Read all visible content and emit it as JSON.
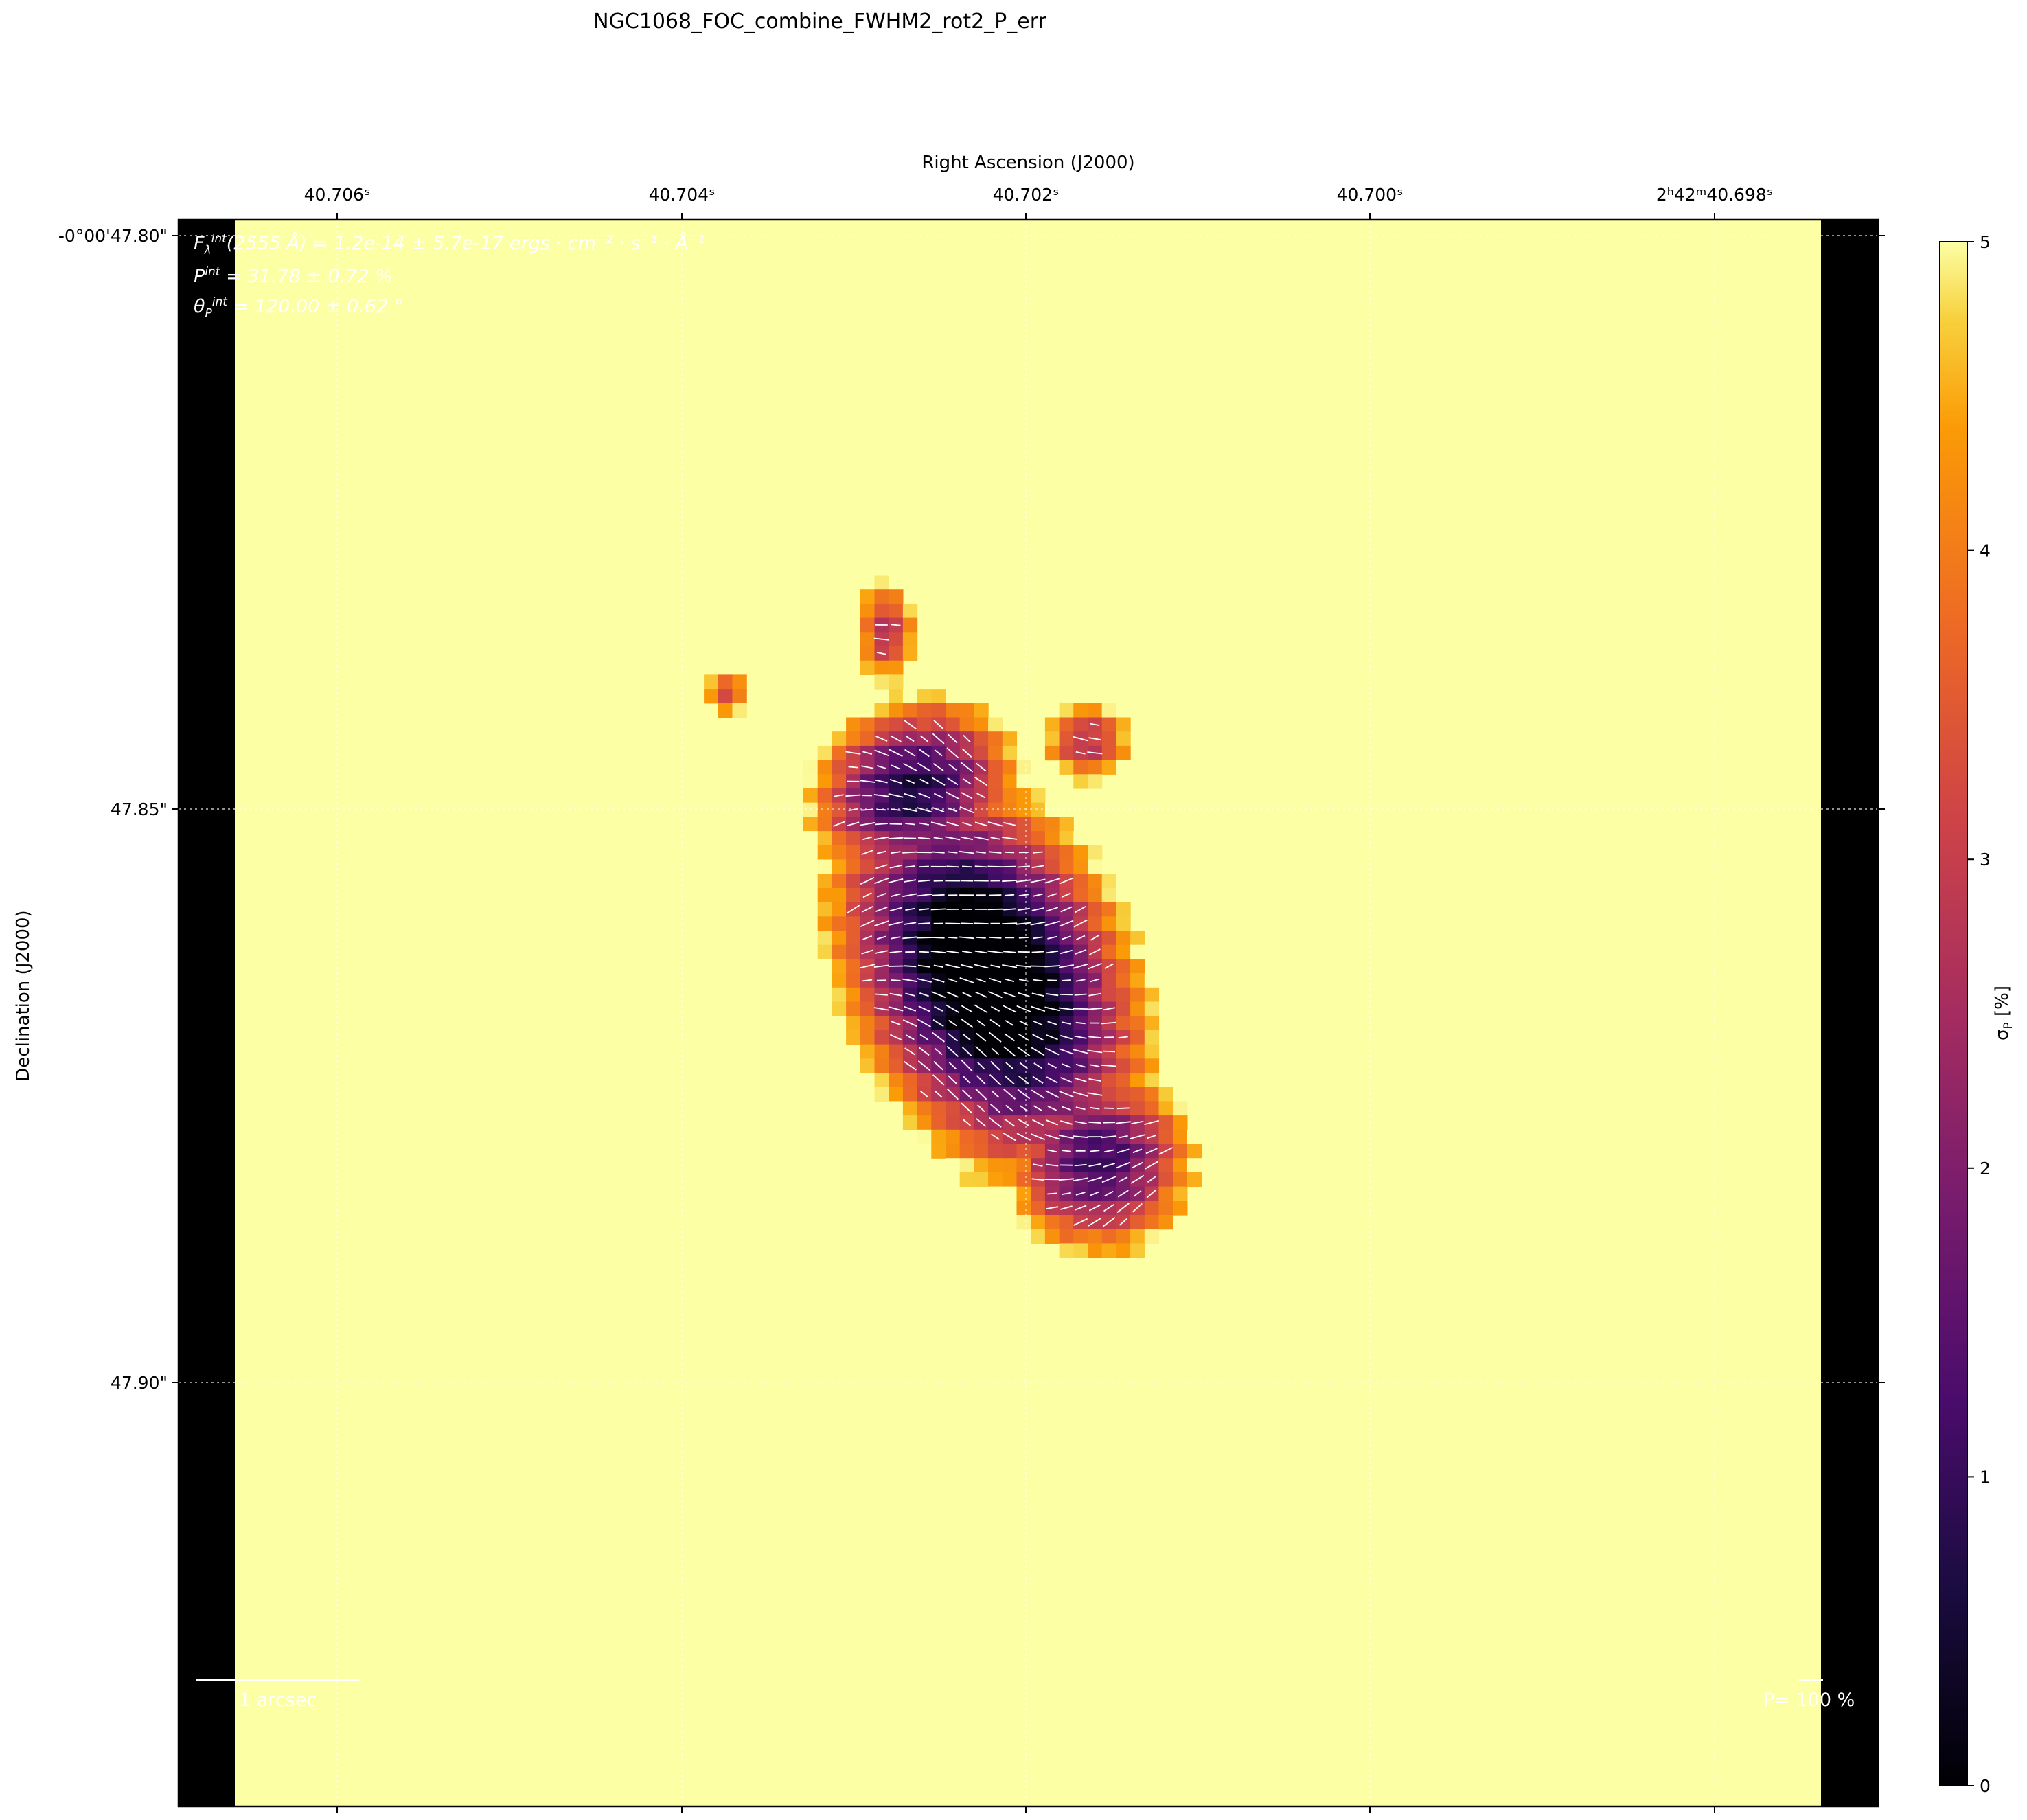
{
  "chart_data": {
    "type": "heatmap",
    "title": "NGC1068_FOC_combine_FWHM2_rot2_P_err",
    "xlabel": "Right Ascension (J2000)",
    "ylabel": "Declination (J2000)",
    "x_ticks": [
      "40.706ˢ",
      "40.704ˢ",
      "40.702ˢ",
      "40.700ˢ",
      "2ʰ42ᵐ40.698ˢ"
    ],
    "y_ticks": [
      "-0°00'47.80\"",
      "47.85\"",
      "47.90\""
    ],
    "colorbar": {
      "label": "σ_P [%]",
      "min": 0,
      "max": 5,
      "ticks": [
        "0",
        "1",
        "2",
        "3",
        "4",
        "5"
      ],
      "colormap": "inferno"
    },
    "annotations": {
      "flux": "(2555 Å) = 1.2e-14 ± 5.7e-17 ergs · cm⁻² · s⁻¹ · Å⁻¹",
      "flux_symbol": "F",
      "pol": "= 31.78 ± 0.72 %",
      "pol_symbol": "P",
      "angle": "= 120.00 ± 0.62 °",
      "angle_symbol": "θ",
      "sup": "int",
      "sub_lambda": "λ",
      "sub_p": "P",
      "scale_bar": "1 arcsec",
      "vector_key": "P= 100 %"
    },
    "background_value": 5,
    "colors": {
      "nan_region": "#000000",
      "saturated": "#fcffa4",
      "grid": "#ffffff",
      "vectors": "#ffffff"
    }
  }
}
